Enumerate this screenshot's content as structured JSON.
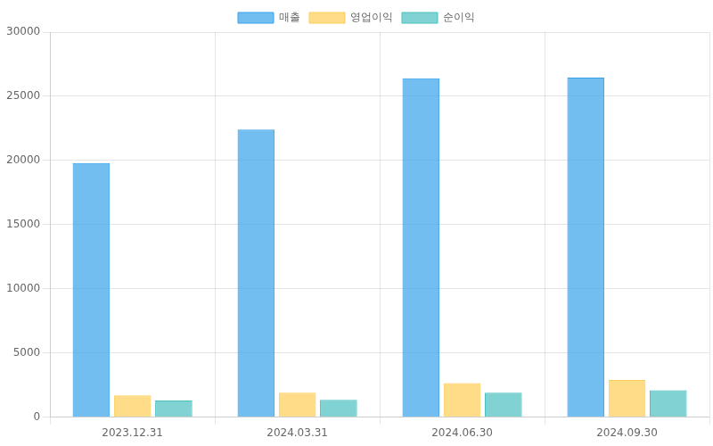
{
  "chart_data": {
    "type": "bar",
    "categories": [
      "2023.12.31",
      "2024.03.31",
      "2024.06.30",
      "2024.09.30"
    ],
    "series": [
      {
        "name": "매출",
        "color": "#36a2eb",
        "values": [
          19800,
          22400,
          26400,
          26450
        ]
      },
      {
        "name": "영업이익",
        "color": "#ffcd56",
        "values": [
          1700,
          1900,
          2650,
          2900
        ]
      },
      {
        "name": "순이익",
        "color": "#4bc0c0",
        "values": [
          1300,
          1350,
          1900,
          2100
        ]
      }
    ],
    "ylim": [
      0,
      30000
    ],
    "yticks": [
      0,
      5000,
      10000,
      15000,
      20000,
      25000,
      30000
    ],
    "grid": true,
    "legend": "top"
  }
}
